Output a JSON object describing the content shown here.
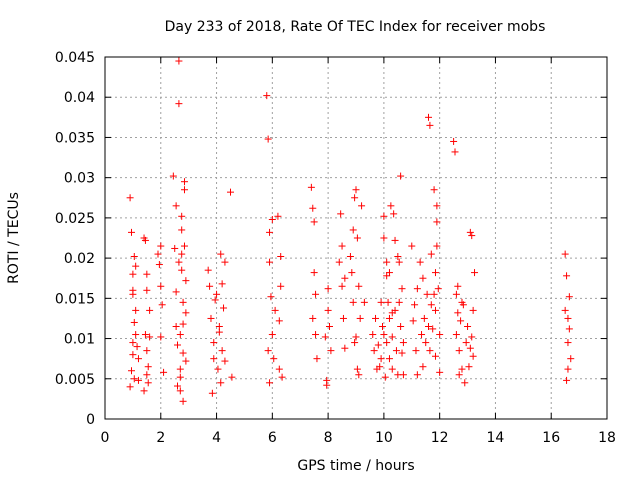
{
  "chart_data": {
    "type": "scatter",
    "title": "Day 233 of 2018, Rate Of TEC Index for receiver mobs",
    "xlabel": "GPS time / hours",
    "ylabel": "ROTI / TECUs",
    "xlim": [
      0,
      18
    ],
    "ylim": [
      0,
      0.045
    ],
    "xticks": [
      0,
      2,
      4,
      6,
      8,
      10,
      12,
      14,
      16,
      18
    ],
    "xtick_labels": [
      "0",
      "2",
      "4",
      "6",
      "8",
      "10",
      "12",
      "14",
      "16",
      "18"
    ],
    "yticks": [
      0,
      0.005,
      0.01,
      0.015,
      0.02,
      0.025,
      0.03,
      0.035,
      0.04,
      0.045
    ],
    "ytick_labels": [
      "0",
      "0.005",
      "0.01",
      "0.015",
      "0.02",
      "0.025",
      "0.03",
      "0.035",
      "0.04",
      "0.045"
    ],
    "grid": true,
    "marker": "+",
    "color": "#ff0000",
    "series": [
      {
        "name": "mobs",
        "x": [
          0.9,
          0.9,
          0.95,
          0.95,
          1.0,
          1.0,
          1.0,
          1.0,
          1.05,
          1.05,
          1.1,
          1.1,
          1.1,
          1.15,
          1.2,
          1.2,
          1.0,
          1.05,
          1.4,
          1.45,
          1.45,
          1.5,
          1.5,
          1.5,
          1.55,
          1.55,
          1.6,
          1.6,
          1.4,
          1.5,
          1.9,
          1.95,
          2.0,
          2.0,
          2.05,
          2.1,
          2.0,
          2.45,
          2.5,
          2.55,
          2.55,
          2.6,
          2.6,
          2.65,
          2.65,
          2.7,
          2.7,
          2.7,
          2.75,
          2.75,
          2.75,
          2.8,
          2.8,
          2.8,
          2.85,
          2.85,
          2.9,
          2.9,
          2.9,
          2.7,
          2.75,
          2.8,
          2.65,
          2.85,
          2.55,
          3.7,
          3.75,
          3.8,
          3.85,
          3.9,
          3.9,
          4.0,
          4.05,
          4.1,
          4.15,
          4.15,
          4.2,
          4.2,
          4.25,
          4.3,
          4.3,
          4.5,
          4.55,
          3.95,
          4.1,
          5.8,
          5.85,
          5.9,
          5.9,
          5.95,
          6.0,
          6.0,
          6.05,
          6.1,
          6.2,
          6.25,
          6.3,
          6.3,
          6.35,
          5.85,
          5.9,
          6.25,
          7.4,
          7.45,
          7.5,
          7.5,
          7.55,
          7.55,
          7.6,
          7.45,
          7.9,
          7.95,
          8.0,
          8.0,
          8.05,
          8.1,
          7.95,
          8.4,
          8.45,
          8.5,
          8.55,
          8.6,
          8.6,
          8.5,
          8.8,
          8.85,
          8.9,
          8.9,
          8.95,
          9.0,
          9.0,
          9.05,
          9.1,
          9.1,
          9.15,
          8.95,
          9.05,
          9.2,
          9.3,
          9.6,
          9.65,
          9.7,
          9.75,
          9.8,
          9.85,
          9.9,
          9.95,
          10.0,
          10.0,
          10.05,
          10.1,
          10.1,
          10.15,
          10.2,
          10.2,
          10.25,
          10.3,
          10.3,
          10.35,
          10.4,
          10.45,
          10.5,
          10.5,
          10.55,
          10.6,
          10.6,
          10.65,
          10.7,
          10.7,
          10.2,
          10.4,
          10.55,
          10.65,
          10.1,
          10.3,
          10.0,
          9.9,
          11.0,
          11.05,
          11.1,
          11.15,
          11.2,
          11.2,
          11.3,
          11.35,
          11.4,
          11.45,
          11.5,
          11.55,
          11.6,
          11.65,
          11.7,
          11.7,
          11.75,
          11.8,
          11.85,
          11.85,
          11.9,
          11.9,
          11.95,
          12.0,
          12.0,
          11.6,
          11.65,
          11.85,
          11.9,
          11.4,
          11.8,
          12.5,
          12.55,
          12.6,
          12.65,
          12.7,
          12.75,
          12.8,
          12.85,
          12.9,
          12.95,
          13.0,
          13.05,
          13.1,
          13.15,
          13.15,
          13.2,
          13.25,
          13.2,
          12.6,
          12.65,
          12.7,
          12.8,
          13.1,
          16.5,
          16.55,
          16.6,
          16.6,
          16.65,
          16.65,
          16.7,
          16.55,
          16.6,
          16.5
        ],
        "y": [
          0.0275,
          0.004,
          0.0232,
          0.006,
          0.018,
          0.0155,
          0.0095,
          0.008,
          0.012,
          0.005,
          0.0105,
          0.0135,
          0.019,
          0.009,
          0.0048,
          0.0075,
          0.016,
          0.0202,
          0.0225,
          0.0222,
          0.0105,
          0.0085,
          0.018,
          0.016,
          0.0065,
          0.0045,
          0.0135,
          0.0102,
          0.0035,
          0.0055,
          0.0205,
          0.0192,
          0.0165,
          0.0102,
          0.0142,
          0.0058,
          0.0215,
          0.0302,
          0.0212,
          0.0265,
          0.0158,
          0.0092,
          0.0041,
          0.0445,
          0.0392,
          0.0062,
          0.0052,
          0.0105,
          0.0252,
          0.0185,
          0.0205,
          0.0118,
          0.0022,
          0.0082,
          0.0215,
          0.0295,
          0.0172,
          0.0132,
          0.0072,
          0.0035,
          0.0235,
          0.0145,
          0.0195,
          0.0285,
          0.0115,
          0.0185,
          0.0165,
          0.0125,
          0.0032,
          0.0075,
          0.0095,
          0.0155,
          0.0062,
          0.0115,
          0.0205,
          0.0045,
          0.0168,
          0.0085,
          0.0138,
          0.0072,
          0.0195,
          0.0282,
          0.0052,
          0.0148,
          0.0108,
          0.0402,
          0.0348,
          0.0195,
          0.0232,
          0.0152,
          0.0248,
          0.0105,
          0.0075,
          0.0135,
          0.0252,
          0.0062,
          0.0202,
          0.0165,
          0.0052,
          0.0085,
          0.0045,
          0.0122,
          0.0288,
          0.0262,
          0.0245,
          0.0182,
          0.0155,
          0.0105,
          0.0075,
          0.0125,
          0.0102,
          0.0042,
          0.0135,
          0.0162,
          0.0115,
          0.0085,
          0.0048,
          0.0195,
          0.0255,
          0.0165,
          0.0125,
          0.0088,
          0.0175,
          0.0215,
          0.0202,
          0.0182,
          0.0235,
          0.0145,
          0.0095,
          0.0285,
          0.0102,
          0.0062,
          0.0055,
          0.0165,
          0.0125,
          0.0275,
          0.0225,
          0.0265,
          0.0145,
          0.0105,
          0.0085,
          0.0125,
          0.0062,
          0.0092,
          0.0065,
          0.0075,
          0.0115,
          0.0252,
          0.0225,
          0.0052,
          0.0195,
          0.0095,
          0.0145,
          0.0182,
          0.0075,
          0.0265,
          0.0102,
          0.0062,
          0.0255,
          0.0135,
          0.0085,
          0.0202,
          0.0055,
          0.0195,
          0.0302,
          0.0115,
          0.0162,
          0.0095,
          0.0055,
          0.0125,
          0.0222,
          0.0145,
          0.0082,
          0.0178,
          0.0132,
          0.0105,
          0.0145,
          0.0215,
          0.0122,
          0.0142,
          0.0085,
          0.0162,
          0.0055,
          0.0195,
          0.0105,
          0.0175,
          0.0125,
          0.0095,
          0.0155,
          0.0375,
          0.0365,
          0.0142,
          0.0205,
          0.0112,
          0.0285,
          0.0182,
          0.0078,
          0.0245,
          0.0215,
          0.0162,
          0.0105,
          0.0058,
          0.0115,
          0.0085,
          0.0135,
          0.0265,
          0.0065,
          0.0155,
          0.0345,
          0.0332,
          0.0105,
          0.0165,
          0.0085,
          0.0122,
          0.0062,
          0.0142,
          0.0045,
          0.0095,
          0.0115,
          0.0065,
          0.0232,
          0.0102,
          0.0228,
          0.0135,
          0.0182,
          0.0078,
          0.0155,
          0.0132,
          0.0055,
          0.0145,
          0.0088,
          0.0205,
          0.0178,
          0.0125,
          0.0095,
          0.0152,
          0.0112,
          0.0075,
          0.0048,
          0.0062,
          0.0135
        ]
      }
    ]
  }
}
